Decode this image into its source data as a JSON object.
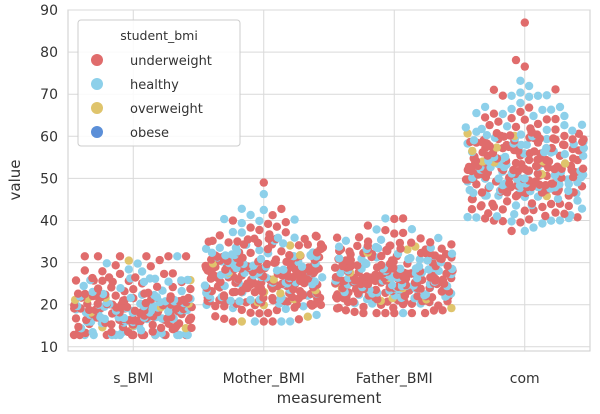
{
  "chart_data": {
    "type": "scatter",
    "subtype": "swarm",
    "title": "",
    "xlabel": "measurement",
    "ylabel": "value",
    "categories": [
      "s_BMI",
      "Mother_BMI",
      "Father_BMI",
      "com"
    ],
    "ylim": [
      9,
      90
    ],
    "yticks": [
      10,
      20,
      30,
      40,
      50,
      60,
      70,
      80,
      90
    ],
    "grid": true,
    "legend": {
      "title": "student_bmi",
      "placement": "top-left",
      "entries": [
        "underweight",
        "healthy",
        "overweight",
        "obese"
      ]
    },
    "colors": {
      "underweight": "#e06c6c",
      "healthy": "#8dd0ea",
      "overweight": "#dfc46c",
      "obese": "#5b8fd8",
      "grid": "#d9d9d9",
      "frame": "#cccccc"
    },
    "distributions": [
      {
        "category": "s_BMI",
        "n": 260,
        "min": 12.8,
        "max": 31.5,
        "median": 18.5,
        "spread": 3.2,
        "skew": 1.1
      },
      {
        "category": "Mother_BMI",
        "n": 320,
        "min": 16,
        "max": 49,
        "median": 26.5,
        "spread": 5.0,
        "skew": 0.9
      },
      {
        "category": "Father_BMI",
        "n": 300,
        "min": 18,
        "max": 40.5,
        "median": 26,
        "spread": 4.2,
        "skew": 0.8
      },
      {
        "category": "com",
        "n": 320,
        "min": 37.5,
        "max": 87,
        "median": 53,
        "spread": 7.0,
        "skew": 0.7
      }
    ],
    "category_mix": [
      0.62,
      0.34,
      0.04,
      0.0
    ]
  }
}
